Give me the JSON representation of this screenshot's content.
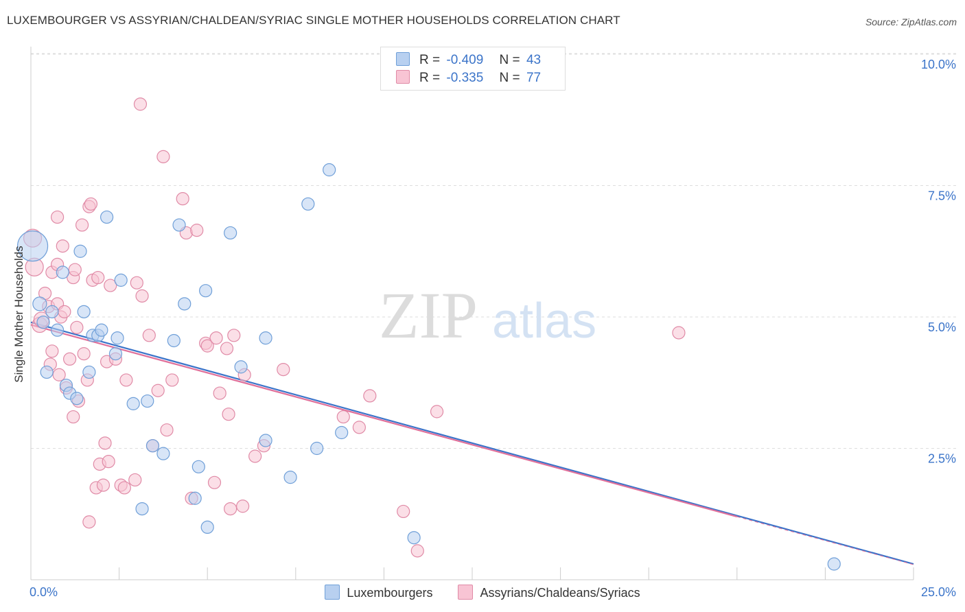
{
  "title": "LUXEMBOURGER VS ASSYRIAN/CHALDEAN/SYRIAC SINGLE MOTHER HOUSEHOLDS CORRELATION CHART",
  "source": "Source: ZipAtlas.com",
  "watermark": {
    "zip": "ZIP",
    "atlas": "atlas"
  },
  "legend": {
    "rows": [
      {
        "r_label": "R =",
        "r_value": "-0.409",
        "n_label": "N =",
        "n_value": "43"
      },
      {
        "r_label": "R =",
        "r_value": "-0.335",
        "n_label": "N =",
        "n_value": "77"
      }
    ]
  },
  "colors": {
    "blue_fill": "#b8d0f0",
    "blue_stroke": "#6f9fd8",
    "blue_line": "#3b74c9",
    "pink_fill": "#f8c4d4",
    "pink_stroke": "#e08aa6",
    "pink_line": "#e0709a",
    "tick_label": "#3b74c9",
    "grid": "#dddddd"
  },
  "chart_data": {
    "type": "scatter",
    "title": "LUXEMBOURGER VS ASSYRIAN/CHALDEAN/SYRIAC SINGLE MOTHER HOUSEHOLDS CORRELATION CHART",
    "xlabel": "",
    "ylabel": "Single Mother Households",
    "xlim": [
      0,
      25
    ],
    "ylim": [
      0,
      10.5
    ],
    "x_tick_labels": [
      "0.0%",
      "25.0%"
    ],
    "y_ticks": [
      2.5,
      5.0,
      7.5,
      10.0
    ],
    "y_tick_labels": [
      "2.5%",
      "5.0%",
      "7.5%",
      "10.0%"
    ],
    "grid": true,
    "legend_position": "top-center",
    "series": [
      {
        "name": "Luxembourgers",
        "r": -0.409,
        "n": 43,
        "trend": {
          "x": [
            0,
            25
          ],
          "y": [
            4.9,
            0.3
          ]
        },
        "points": [
          [
            0.05,
            6.35,
            22
          ],
          [
            0.25,
            5.25,
            10
          ],
          [
            0.35,
            4.9,
            9
          ],
          [
            0.45,
            3.95,
            9
          ],
          [
            0.6,
            5.1,
            9
          ],
          [
            0.75,
            4.75,
            9
          ],
          [
            0.9,
            5.85,
            9
          ],
          [
            1.0,
            3.7,
            9
          ],
          [
            1.1,
            3.55,
            9
          ],
          [
            1.3,
            3.45,
            9
          ],
          [
            1.4,
            6.25,
            9
          ],
          [
            1.5,
            5.1,
            9
          ],
          [
            1.65,
            3.95,
            9
          ],
          [
            1.75,
            4.65,
            9
          ],
          [
            1.9,
            4.65,
            9
          ],
          [
            2.0,
            4.75,
            9
          ],
          [
            2.15,
            6.9,
            9
          ],
          [
            2.4,
            4.3,
            9
          ],
          [
            2.45,
            4.6,
            9
          ],
          [
            2.55,
            5.7,
            9
          ],
          [
            2.9,
            3.35,
            9
          ],
          [
            3.15,
            1.35,
            9
          ],
          [
            3.3,
            3.4,
            9
          ],
          [
            3.45,
            2.55,
            9
          ],
          [
            3.75,
            2.4,
            9
          ],
          [
            4.05,
            4.55,
            9
          ],
          [
            4.2,
            6.75,
            9
          ],
          [
            4.35,
            5.25,
            9
          ],
          [
            4.65,
            1.55,
            9
          ],
          [
            4.75,
            2.15,
            9
          ],
          [
            4.95,
            5.5,
            9
          ],
          [
            5.0,
            1.0,
            9
          ],
          [
            5.65,
            6.6,
            9
          ],
          [
            5.95,
            4.05,
            9
          ],
          [
            6.65,
            4.6,
            9
          ],
          [
            6.65,
            2.65,
            9
          ],
          [
            7.35,
            1.95,
            9
          ],
          [
            7.85,
            7.15,
            9
          ],
          [
            8.1,
            2.5,
            9
          ],
          [
            8.45,
            7.8,
            9
          ],
          [
            8.8,
            2.8,
            9
          ],
          [
            10.85,
            0.8,
            9
          ],
          [
            22.75,
            0.3,
            9
          ]
        ]
      },
      {
        "name": "Assyrians/Chaldeans/Syriacs",
        "r": -0.335,
        "n": 77,
        "trend": {
          "x": [
            0,
            20
          ],
          "y": [
            4.85,
            1.2
          ]
        },
        "points": [
          [
            0.05,
            6.5,
            13
          ],
          [
            0.1,
            5.95,
            13
          ],
          [
            0.25,
            4.85,
            11
          ],
          [
            0.4,
            5.45,
            9
          ],
          [
            0.5,
            5.2,
            9
          ],
          [
            0.55,
            4.1,
            9
          ],
          [
            0.6,
            5.85,
            9
          ],
          [
            0.6,
            4.35,
            9
          ],
          [
            0.75,
            5.25,
            9
          ],
          [
            0.75,
            6.0,
            9
          ],
          [
            0.75,
            6.9,
            9
          ],
          [
            0.8,
            3.9,
            9
          ],
          [
            0.85,
            5.0,
            9
          ],
          [
            0.9,
            6.35,
            9
          ],
          [
            0.95,
            5.1,
            9
          ],
          [
            1.0,
            3.65,
            9
          ],
          [
            1.1,
            4.2,
            9
          ],
          [
            1.2,
            5.75,
            9
          ],
          [
            1.2,
            3.1,
            9
          ],
          [
            1.25,
            5.9,
            9
          ],
          [
            1.3,
            4.8,
            9
          ],
          [
            1.35,
            3.4,
            9
          ],
          [
            1.45,
            6.75,
            9
          ],
          [
            1.5,
            4.3,
            9
          ],
          [
            1.6,
            3.8,
            9
          ],
          [
            1.65,
            1.1,
            9
          ],
          [
            1.65,
            7.1,
            9
          ],
          [
            1.7,
            7.15,
            9
          ],
          [
            1.75,
            5.7,
            9
          ],
          [
            1.85,
            1.75,
            9
          ],
          [
            1.9,
            5.75,
            9
          ],
          [
            1.95,
            2.2,
            9
          ],
          [
            2.05,
            1.8,
            9
          ],
          [
            2.1,
            2.6,
            9
          ],
          [
            2.15,
            4.15,
            9
          ],
          [
            2.2,
            2.25,
            9
          ],
          [
            2.25,
            5.6,
            9
          ],
          [
            2.4,
            4.2,
            9
          ],
          [
            2.55,
            1.8,
            9
          ],
          [
            2.65,
            1.75,
            9
          ],
          [
            2.7,
            3.8,
            9
          ],
          [
            2.95,
            1.9,
            9
          ],
          [
            3.0,
            5.65,
            9
          ],
          [
            3.1,
            9.05,
            9
          ],
          [
            3.15,
            5.4,
            9
          ],
          [
            3.35,
            4.65,
            9
          ],
          [
            3.45,
            2.55,
            9
          ],
          [
            3.6,
            3.6,
            9
          ],
          [
            3.75,
            8.05,
            9
          ],
          [
            3.85,
            2.85,
            9
          ],
          [
            4.0,
            3.8,
            9
          ],
          [
            4.3,
            7.25,
            9
          ],
          [
            4.4,
            6.6,
            9
          ],
          [
            4.55,
            1.55,
            9
          ],
          [
            4.7,
            6.65,
            9
          ],
          [
            4.95,
            4.5,
            9
          ],
          [
            5.0,
            4.45,
            9
          ],
          [
            5.2,
            1.85,
            9
          ],
          [
            5.25,
            4.6,
            9
          ],
          [
            5.35,
            3.55,
            9
          ],
          [
            5.55,
            4.4,
            9
          ],
          [
            5.6,
            3.15,
            9
          ],
          [
            5.65,
            1.35,
            9
          ],
          [
            5.75,
            4.65,
            9
          ],
          [
            6.0,
            1.4,
            9
          ],
          [
            6.05,
            3.9,
            9
          ],
          [
            6.35,
            2.35,
            9
          ],
          [
            6.6,
            2.55,
            9
          ],
          [
            7.15,
            4.0,
            9
          ],
          [
            8.85,
            3.1,
            9
          ],
          [
            9.3,
            2.9,
            9
          ],
          [
            9.6,
            3.5,
            9
          ],
          [
            10.55,
            1.3,
            9
          ],
          [
            10.95,
            0.55,
            9
          ],
          [
            11.5,
            3.2,
            9
          ],
          [
            18.35,
            4.7,
            9
          ],
          [
            0.3,
            4.95,
            11
          ]
        ]
      }
    ]
  }
}
